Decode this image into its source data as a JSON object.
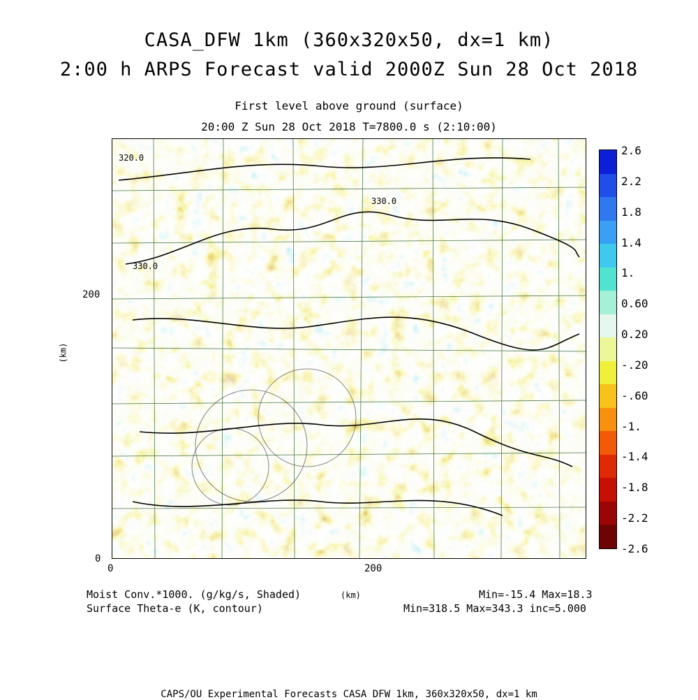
{
  "header": {
    "title_line1": "CASA_DFW 1km (360x320x50, dx=1 km)",
    "title_line2": "2:00 h ARPS Forecast valid 2000Z Sun 28 Oct 2018",
    "level_text": "First level above ground (surface)",
    "time_text": "20:00 Z Sun 28 Oct 2018    T=7800.0 s (2:10:00)"
  },
  "axes": {
    "x_ticks": [
      "0",
      "200"
    ],
    "y_ticks": [
      "0",
      "200"
    ],
    "x_unit": "(km)",
    "y_unit": "(km)"
  },
  "contour_labels": [
    "320.0",
    "330.0",
    "330.0"
  ],
  "colorbar": {
    "labels": [
      "2.6",
      "2.2",
      "1.8",
      "1.4",
      "1.",
      "0.60",
      "0.20",
      "-.20",
      "-.60",
      "-1.",
      "-1.4",
      "-1.8",
      "-2.2",
      "-2.6"
    ],
    "colors": [
      "#0a1fd6",
      "#1f4fe8",
      "#2f78f0",
      "#3aa0f5",
      "#3ec9ef",
      "#52e3d0",
      "#a5f0d8",
      "#e6f8ec",
      "#ecf79a",
      "#eef03a",
      "#f7c21a",
      "#f9900f",
      "#f25a08",
      "#e02a06",
      "#c80f05",
      "#9c0505",
      "#6e0303"
    ]
  },
  "footer": {
    "field1": "Moist Conv.*1000. (g/kg/s, Shaded)",
    "field2": "Surface Theta-e (K, contour)",
    "unit": "(km)",
    "stats1": "Min=-15.4 Max=18.3",
    "stats2": "Min=318.5 Max=343.3 inc=5.000",
    "credit": "CAPS/OU Experimental Forecasts  CASA DFW 1km, 360x320x50, dx=1 km"
  }
}
